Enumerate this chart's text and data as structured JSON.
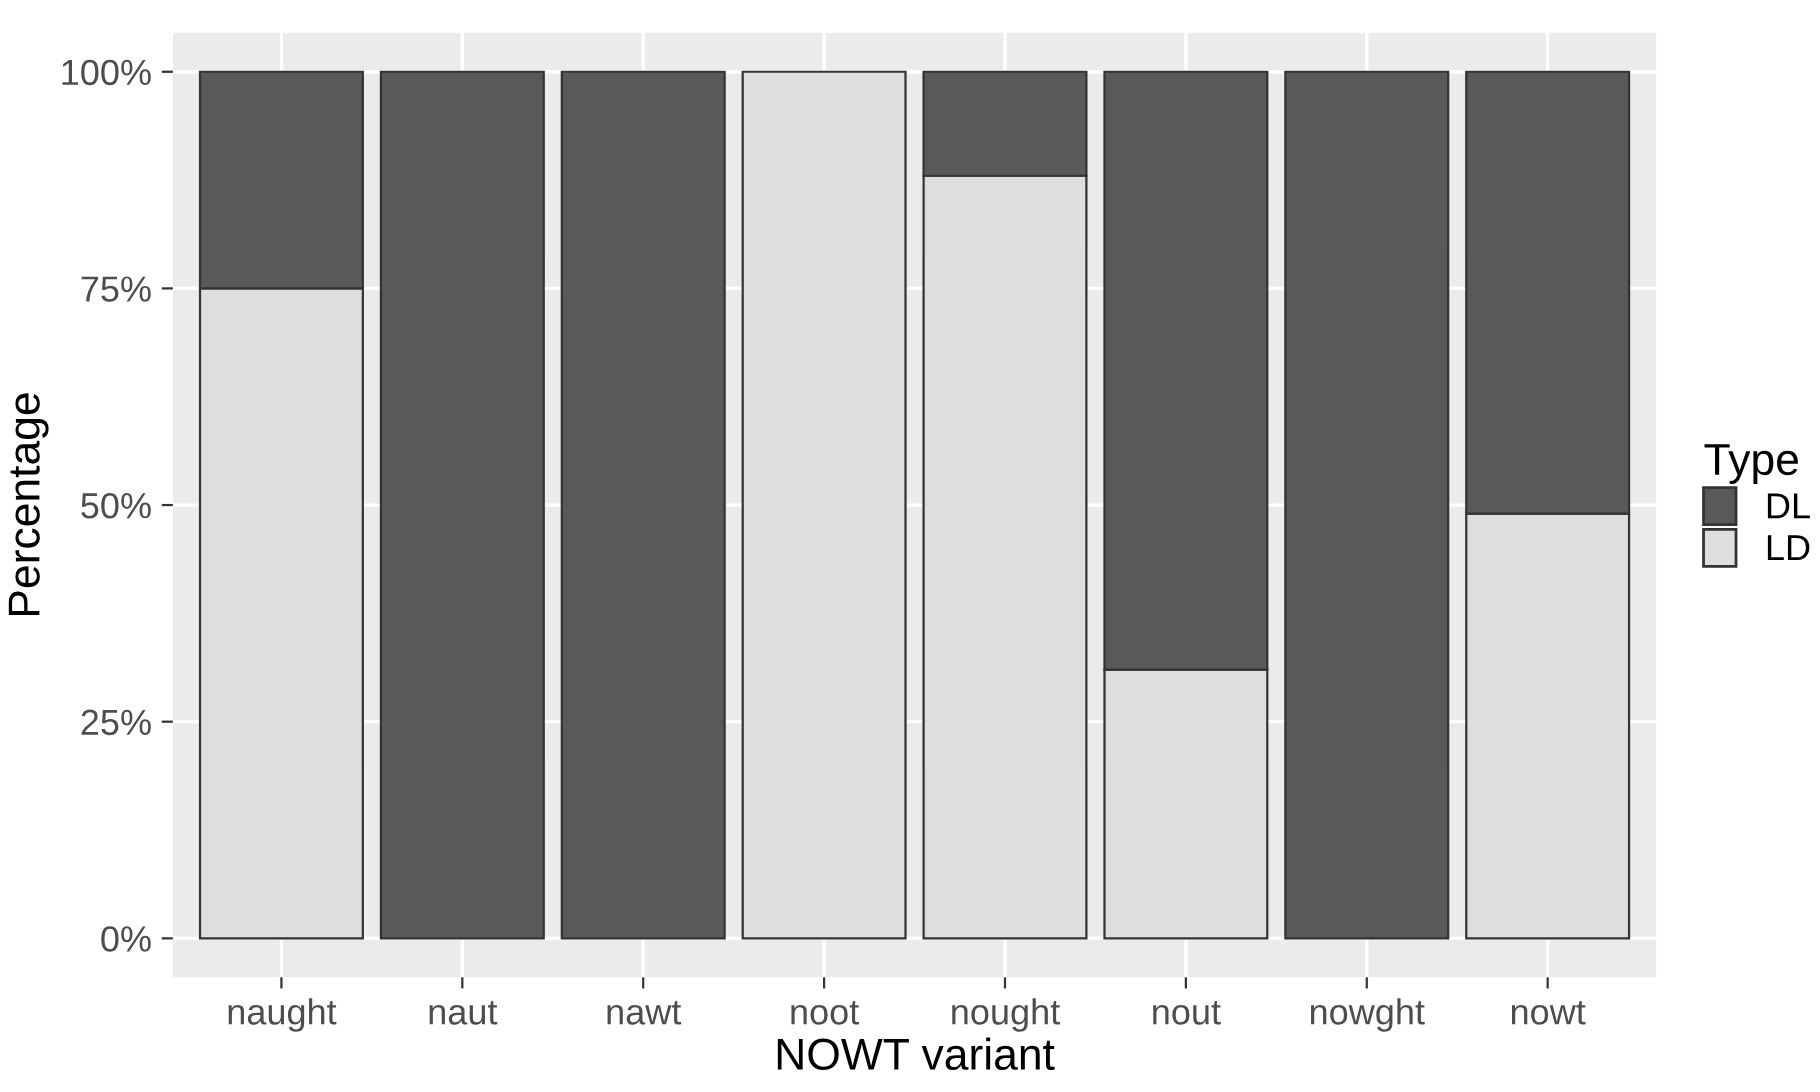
{
  "chart_data": {
    "type": "bar",
    "stacked": true,
    "xlabel": "NOWT variant",
    "ylabel": "Percentage",
    "legend_title": "Type",
    "legend": "right",
    "categories": [
      "naught",
      "naut",
      "nawt",
      "noot",
      "nought",
      "nout",
      "nowght",
      "nowt"
    ],
    "series": [
      {
        "name": "LD",
        "color": "#dedede",
        "values": [
          75,
          0,
          0,
          100,
          88,
          31,
          0,
          49
        ]
      },
      {
        "name": "DL",
        "color": "#595959",
        "values": [
          25,
          100,
          100,
          0,
          12,
          69,
          100,
          51
        ]
      }
    ],
    "ylim": [
      -4.5,
      104.5
    ],
    "yticks": [
      {
        "value": 0,
        "label": "0%"
      },
      {
        "value": 25,
        "label": "25%"
      },
      {
        "value": 50,
        "label": "50%"
      },
      {
        "value": 75,
        "label": "75%"
      },
      {
        "value": 100,
        "label": "100%"
      }
    ],
    "grid": true
  }
}
